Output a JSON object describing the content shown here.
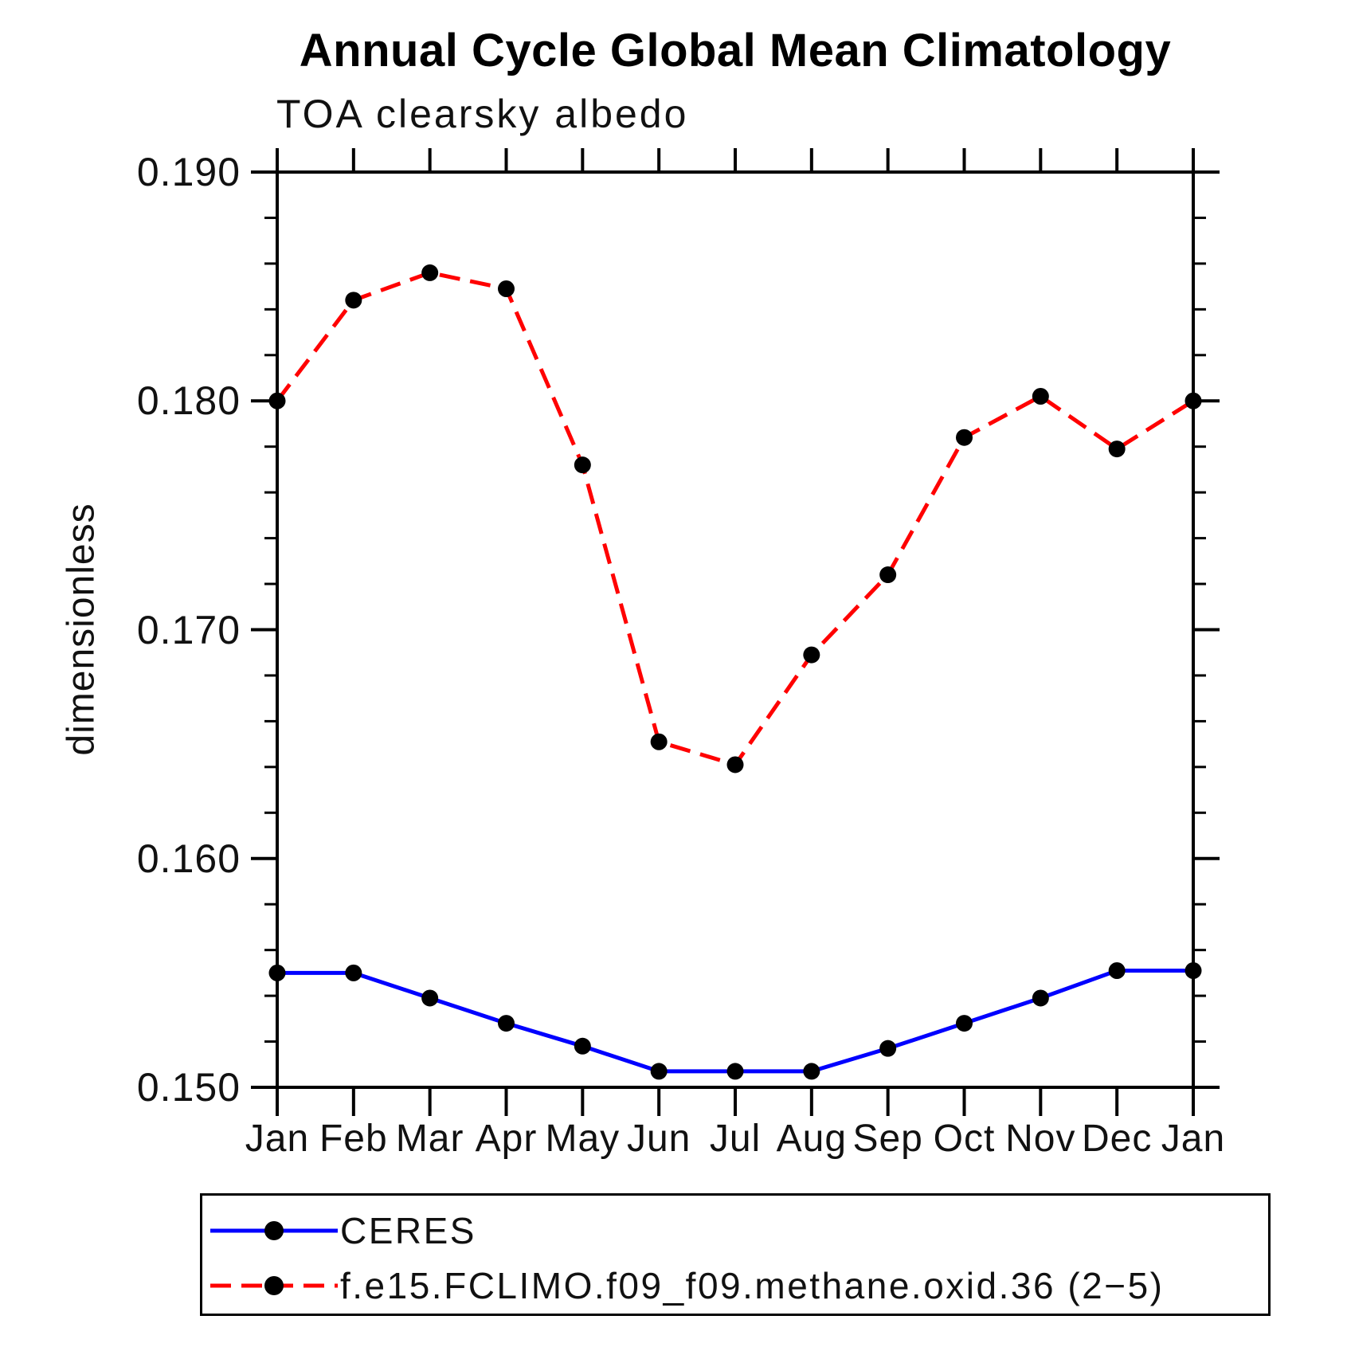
{
  "header": {
    "title": "Annual Cycle Global Mean Climatology",
    "subtitle": "TOA clearsky albedo"
  },
  "y_axis": {
    "label": "dimensionless",
    "ticks": [
      {
        "value": 0.19,
        "label": "0.190"
      },
      {
        "value": 0.18,
        "label": "0.180"
      },
      {
        "value": 0.17,
        "label": "0.170"
      },
      {
        "value": 0.16,
        "label": "0.160"
      },
      {
        "value": 0.15,
        "label": "0.150"
      }
    ]
  },
  "x_axis": {
    "tick_labels": [
      "Jan",
      "Feb",
      "Mar",
      "Apr",
      "May",
      "Jun",
      "Jul",
      "Aug",
      "Sep",
      "Oct",
      "Nov",
      "Dec",
      "Jan"
    ]
  },
  "legend": {
    "entries": [
      {
        "label": "CERES",
        "color": "#0000ff",
        "style": "solid",
        "marker_color": "#000000"
      },
      {
        "label": "f.e15.FCLIMO.f09_f09.methane.oxid.36 (2−5)",
        "color": "#ff0000",
        "style": "dashed",
        "marker_color": "#000000"
      }
    ]
  },
  "chart_data": {
    "type": "line",
    "title": "Annual Cycle Global Mean Climatology",
    "subtitle": "TOA clearsky albedo",
    "xlabel": "",
    "ylabel": "dimensionless",
    "categories": [
      "Jan",
      "Feb",
      "Mar",
      "Apr",
      "May",
      "Jun",
      "Jul",
      "Aug",
      "Sep",
      "Oct",
      "Nov",
      "Dec",
      "Jan"
    ],
    "series": [
      {
        "name": "CERES",
        "color": "#0000ff",
        "line_style": "solid",
        "marker": "circle",
        "marker_color": "#000000",
        "values": [
          0.155,
          0.155,
          0.1539,
          0.1528,
          0.1518,
          0.1507,
          0.1507,
          0.1507,
          0.1517,
          0.1528,
          0.1539,
          0.1551,
          0.1551
        ]
      },
      {
        "name": "f.e15.FCLIMO.f09_f09.methane.oxid.36 (2−5)",
        "color": "#ff0000",
        "line_style": "dashed",
        "marker": "circle",
        "marker_color": "#000000",
        "values": [
          0.18,
          0.1844,
          0.1856,
          0.1849,
          0.1772,
          0.1651,
          0.1641,
          0.1689,
          0.1724,
          0.1784,
          0.1802,
          0.1779,
          0.18
        ]
      }
    ],
    "ylim": [
      0.15,
      0.19
    ],
    "y_major_step": 0.01,
    "y_minor_step": 0.002,
    "grid": false,
    "legend_position": "bottom-left"
  }
}
